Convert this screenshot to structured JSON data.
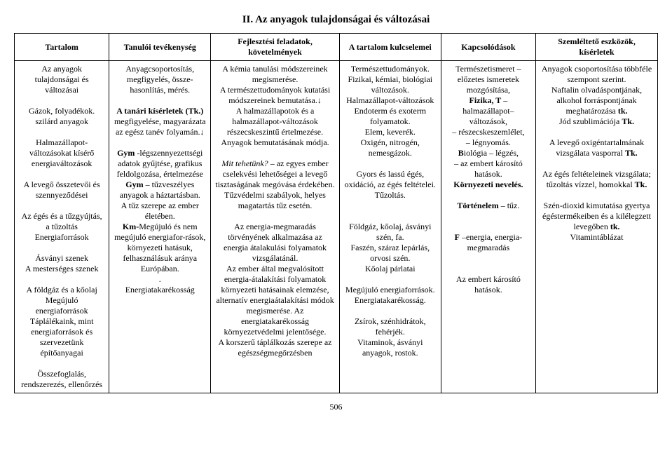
{
  "title": "II. Az anyagok tulajdonságai és változásai",
  "headers": {
    "c0": "Tartalom",
    "c1": "Tanulói tevékenység",
    "c2": "Fejlesztési feladatok, követelmények",
    "c3": "A tartalom kulcselemei",
    "c4": "Kapcsolódások",
    "c5": "Szemléltető eszközök, kísérletek"
  },
  "row": {
    "c0": "Az anyagok tulajdonságai és változásai\n\nGázok, folyadékok. szilárd anyagok\n\nHalmazállapot-változásokat kísérő energiaváltozások\n\nA levegő összetevői és szennyeződései\n\nAz égés és a tűzgyújtás, a tűzoltás\nEnergiaforrások\n\nÁsványi szenek\nA mesterséges szenek\n\nA földgáz és a kőolaj\nMegújuló energiaforrások\nTáplálékaink, mint energiaforrások és szervezetünk építőanyagai\n\nÖsszefoglalás, rendszerezés, ellenőrzés",
    "c1": "Anyagcsoportosítás, megfigyelés, össze-hasonlítás, mérés.\n\nA tanári kísérletek (Tk.) megfigyelése, magyarázata az egész tanév folyamán.↓\n\nGym -légszennyezettségi adatok gyűjtése, grafikus feldolgozása, értelmezése\nGym – tűzveszélyes anyagok a háztartásban.\nA tűz szerepe az ember életében.\nKm-Megújuló és nem megújuló energiafor-rások, környezeti hatásuk, felhasználásuk aránya Európában.\n.\nEnergiatakarékosság",
    "c2": "A kémia tanulási módszereinek megismerése.\nA természettudományok kutatási módszereinek bemutatása.↓\nA halmazállapotok és a halmazállapot-változások részecskeszintű értelmezése.\nAnyagok bemutatásának módja.\n\nMit tehetünk? – az egyes ember cselekvési lehetőségei a levegő tisztaságának megóvása érdekében.\nTűzvédelmi szabályok, helyes magatartás tűz esetén.\n\nAz energia-megmaradás törvényének alkalmazása az energia átalakulási folyamatok vizsgálatánál.\nAz ember által megvalósított energia-átalakítási folyamatok környezeti hatásainak elemzése, alternatív energiaátalakítási módok megismerése. Az energiatakarékosság környezetvédelmi jelentősége.\nA korszerű táplálkozás szerepe az egészségmegőrzésben",
    "c3": "Természettudományok.\nFizikai, kémiai, biológiai változások.\nHalmazállapot-változások\nEndoterm és exoterm folyamatok.\nElem, keverék.\nOxigén, nitrogén, nemesgázok.\n\nGyors és lassú égés, oxidáció, az égés feltételei. Tűzoltás.\n\n\nFöldgáz, kőolaj, ásványi szén, fa.\nFaszén, száraz lepárlás, orvosi szén.\nKőolaj párlatai\n\nMegújuló energiaforrások.\nEnergiatakarékosság.\n\nZsírok, szénhidrátok, fehérjék.\nVitaminok, ásványi anyagok, rostok.",
    "c4": "Természetismeret – előzetes ismeretek mozgósítása,\nFizika, T – halmazállapot–\nváltozások,\n– részecskeszemlélet,\n– légnyomás.\nBiológia – légzés,\n– az embert károsító hatások.\nKörnyezeti nevelés.\n\nTörténelem – tűz.\n\n\nF –energia, energia-megmaradás\n\n\nAz embert károsító hatások.",
    "c5": "Anyagok csoportosítása többféle szempont szerint.\nNaftalin olvadáspontjának, alkohol forráspontjának meghatározása tk.\nJód szublimációja Tk.\n\nA levegő oxigéntartalmának vizsgálata vasporral Tk.\n\nAz égés feltételeinek vizsgálata; tűzoltás vízzel, homokkal Tk.\n\nSzén-dioxid kimutatása gyertya égéstermékeiben és a kilélegzett levegőben tk.\nVitamintáblázat"
  },
  "pagenum": "506"
}
